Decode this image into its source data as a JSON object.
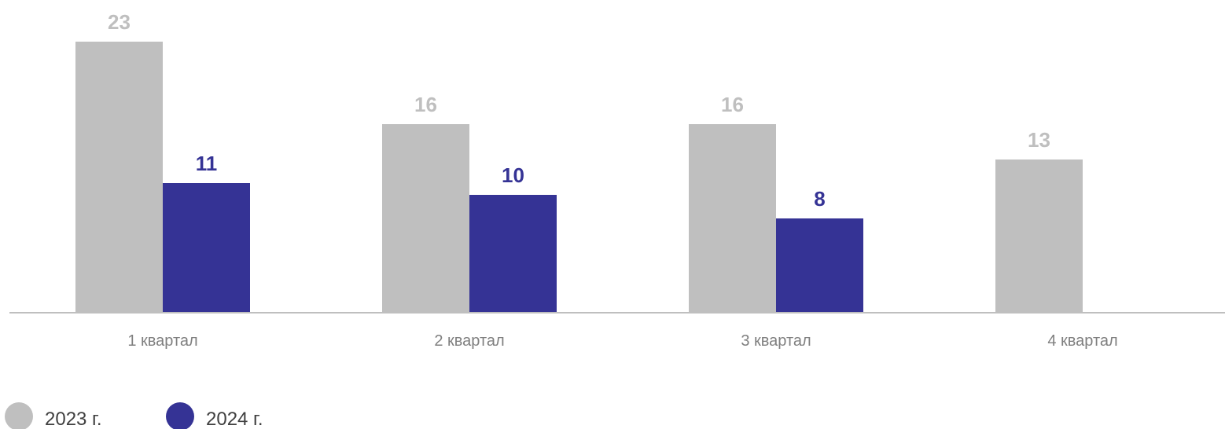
{
  "chart_data": {
    "type": "bar",
    "categories": [
      "1 квартал",
      "2 квартал",
      "3 квартал",
      "4 квартал"
    ],
    "series": [
      {
        "name": "2023 г.",
        "color": "#bfbfbf",
        "label_color": "#bfbfbf",
        "values": [
          23,
          16,
          16,
          13
        ]
      },
      {
        "name": "2024 г.",
        "color": "#353395",
        "label_color": "#353395",
        "values": [
          11,
          10,
          8,
          null
        ]
      }
    ],
    "title": "",
    "xlabel": "",
    "ylabel": "",
    "ylim": [
      0,
      23
    ],
    "grid": false,
    "legend_position": "bottom-left",
    "axis_color": "#bfbfbf"
  }
}
